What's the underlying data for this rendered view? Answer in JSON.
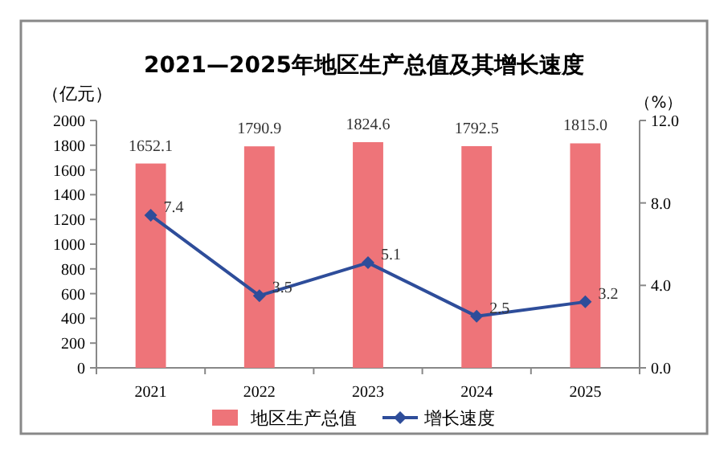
{
  "chart_data": {
    "type": "bar",
    "title": "2021—2025年地区生产总值及其增长速度",
    "categories": [
      "2021",
      "2022",
      "2023",
      "2024",
      "2025"
    ],
    "series": [
      {
        "name": "地区生产总值",
        "color": "#ee7479",
        "values": [
          1652.1,
          1790.9,
          1824.6,
          1792.5,
          1815.0
        ],
        "value_labels": [
          "1652.1",
          "1790.9",
          "1824.6",
          "1792.5",
          "1815.0"
        ]
      },
      {
        "name": "增长速度",
        "type": "line",
        "axis": "y2",
        "color": "#2e4d9a",
        "marker": "diamond",
        "values": [
          7.4,
          3.5,
          5.1,
          2.5,
          3.2
        ],
        "value_labels": [
          "7.4",
          "3.5",
          "5.1",
          "2.5",
          "3.2"
        ]
      }
    ],
    "ylabel": "（亿元）",
    "y2label": "（%）",
    "ylim": [
      0,
      2000
    ],
    "yticks": [
      0,
      200,
      400,
      600,
      800,
      1000,
      1200,
      1400,
      1600,
      1800,
      2000
    ],
    "y2lim": [
      0,
      12
    ],
    "y2ticks": [
      {
        "value": 0,
        "label": "0.0"
      },
      {
        "value": 4,
        "label": "4.0"
      },
      {
        "value": 8,
        "label": "8.0"
      },
      {
        "value": 12,
        "label": "12.0"
      }
    ],
    "legend": "bottom",
    "grid": false
  }
}
